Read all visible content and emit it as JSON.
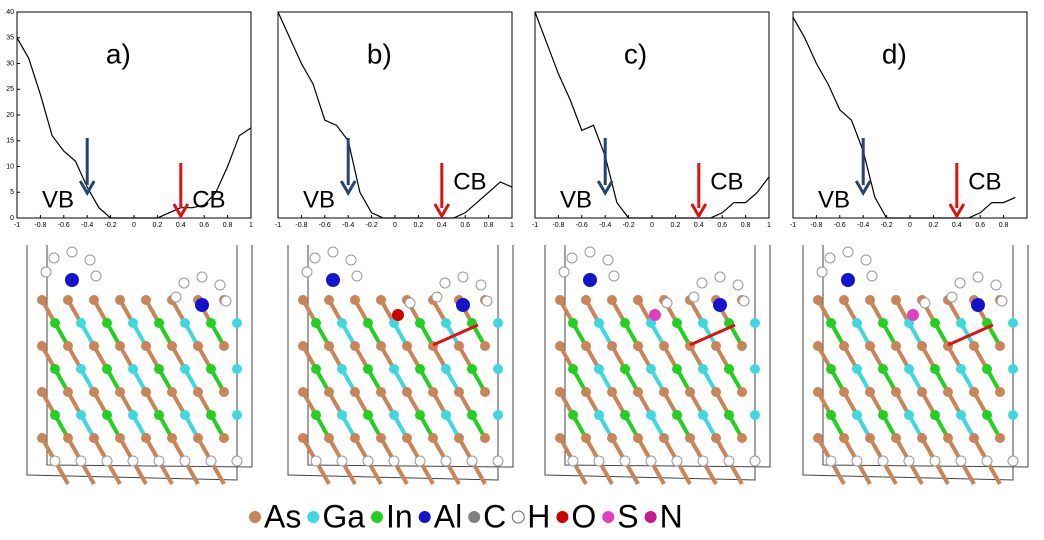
{
  "chart_data": [
    {
      "type": "line",
      "panel_label": "a)",
      "annotations": [
        "VB",
        "CB"
      ],
      "x": [
        -1,
        -0.9,
        -0.8,
        -0.7,
        -0.6,
        -0.5,
        -0.4,
        -0.3,
        -0.2,
        -0.1,
        0,
        0.1,
        0.2,
        0.3,
        0.4,
        0.5,
        0.6,
        0.7,
        0.8,
        0.9,
        1
      ],
      "values": [
        35,
        31,
        24,
        16,
        13,
        11,
        6,
        2,
        0,
        0,
        0,
        0,
        0,
        1,
        2,
        2,
        2.5,
        5,
        10,
        16,
        17.5
      ],
      "color": "#000000",
      "xlim": [
        -1,
        1
      ],
      "ylim": [
        0,
        40
      ],
      "xticks": [
        -1,
        -0.8,
        -0.6,
        -0.4,
        -0.2,
        0,
        0.2,
        0.4,
        0.6,
        0.8,
        1
      ],
      "yticks": [
        0,
        5,
        10,
        15,
        20,
        25,
        30,
        35,
        40
      ]
    },
    {
      "type": "line",
      "panel_label": "b)",
      "annotations": [
        "VB",
        "CB"
      ],
      "x": [
        -1,
        -0.9,
        -0.8,
        -0.7,
        -0.6,
        -0.5,
        -0.4,
        -0.3,
        -0.2,
        -0.1,
        0,
        0.1,
        0.2,
        0.3,
        0.4,
        0.5,
        0.6,
        0.7,
        0.8,
        0.9,
        1
      ],
      "values": [
        40,
        35,
        30,
        26,
        19,
        18,
        15,
        5,
        1,
        0,
        0,
        0,
        0,
        0,
        0,
        0,
        1,
        3,
        5,
        7,
        6
      ],
      "color": "#000000",
      "xlim": [
        -1,
        1
      ],
      "ylim": [
        0,
        40
      ],
      "xticks": [
        -1,
        -0.8,
        -0.6,
        -0.4,
        -0.2,
        0,
        0.2,
        0.4,
        0.6,
        0.8,
        1
      ]
    },
    {
      "type": "line",
      "panel_label": "c)",
      "annotations": [
        "VB",
        "CB"
      ],
      "x": [
        -1,
        -0.9,
        -0.8,
        -0.7,
        -0.6,
        -0.5,
        -0.4,
        -0.3,
        -0.2,
        -0.1,
        0,
        0.1,
        0.2,
        0.3,
        0.4,
        0.5,
        0.6,
        0.7,
        0.8,
        0.9,
        1
      ],
      "values": [
        40,
        34,
        28,
        23,
        17,
        18,
        12,
        3,
        0,
        0,
        0,
        0,
        0,
        0,
        0,
        0,
        1,
        3,
        3,
        5,
        8
      ],
      "color": "#000000",
      "xlim": [
        -1,
        1
      ],
      "ylim": [
        0,
        40
      ],
      "xticks": [
        -1,
        -0.8,
        -0.6,
        -0.4,
        -0.2,
        0,
        0.2,
        0.4,
        0.6,
        0.8,
        1
      ]
    },
    {
      "type": "line",
      "panel_label": "d)",
      "annotations": [
        "VB",
        "CB"
      ],
      "x": [
        -1,
        -0.9,
        -0.8,
        -0.7,
        -0.6,
        -0.5,
        -0.4,
        -0.3,
        -0.2,
        -0.1,
        0,
        0.1,
        0.2,
        0.3,
        0.4,
        0.5,
        0.6,
        0.7,
        0.8,
        0.9,
        1
      ],
      "values": [
        39,
        35,
        30,
        26,
        21,
        19,
        13,
        4,
        0,
        0,
        0,
        0,
        0,
        0,
        0,
        0,
        1,
        3,
        3,
        4,
        null
      ],
      "color": "#000000",
      "xlim": [
        -1,
        1
      ],
      "ylim": [
        0,
        40
      ],
      "xticks": [
        -1,
        -0.8,
        -0.6,
        -0.4,
        -0.2,
        0,
        0.2,
        0.4,
        0.6,
        0.8
      ]
    }
  ],
  "atom_legend": [
    {
      "name": "As",
      "color": "#c98457"
    },
    {
      "name": "Ga",
      "color": "#3fd8e0"
    },
    {
      "name": "In",
      "color": "#22d022"
    },
    {
      "name": "Al",
      "color": "#1414cc"
    },
    {
      "name": "C",
      "color": "#808080"
    },
    {
      "name": "H",
      "color": "#ffffff"
    },
    {
      "name": "O",
      "color": "#cc0000"
    },
    {
      "name": "S",
      "color": "#e040c0"
    },
    {
      "name": "N",
      "color": "#c81890"
    }
  ]
}
